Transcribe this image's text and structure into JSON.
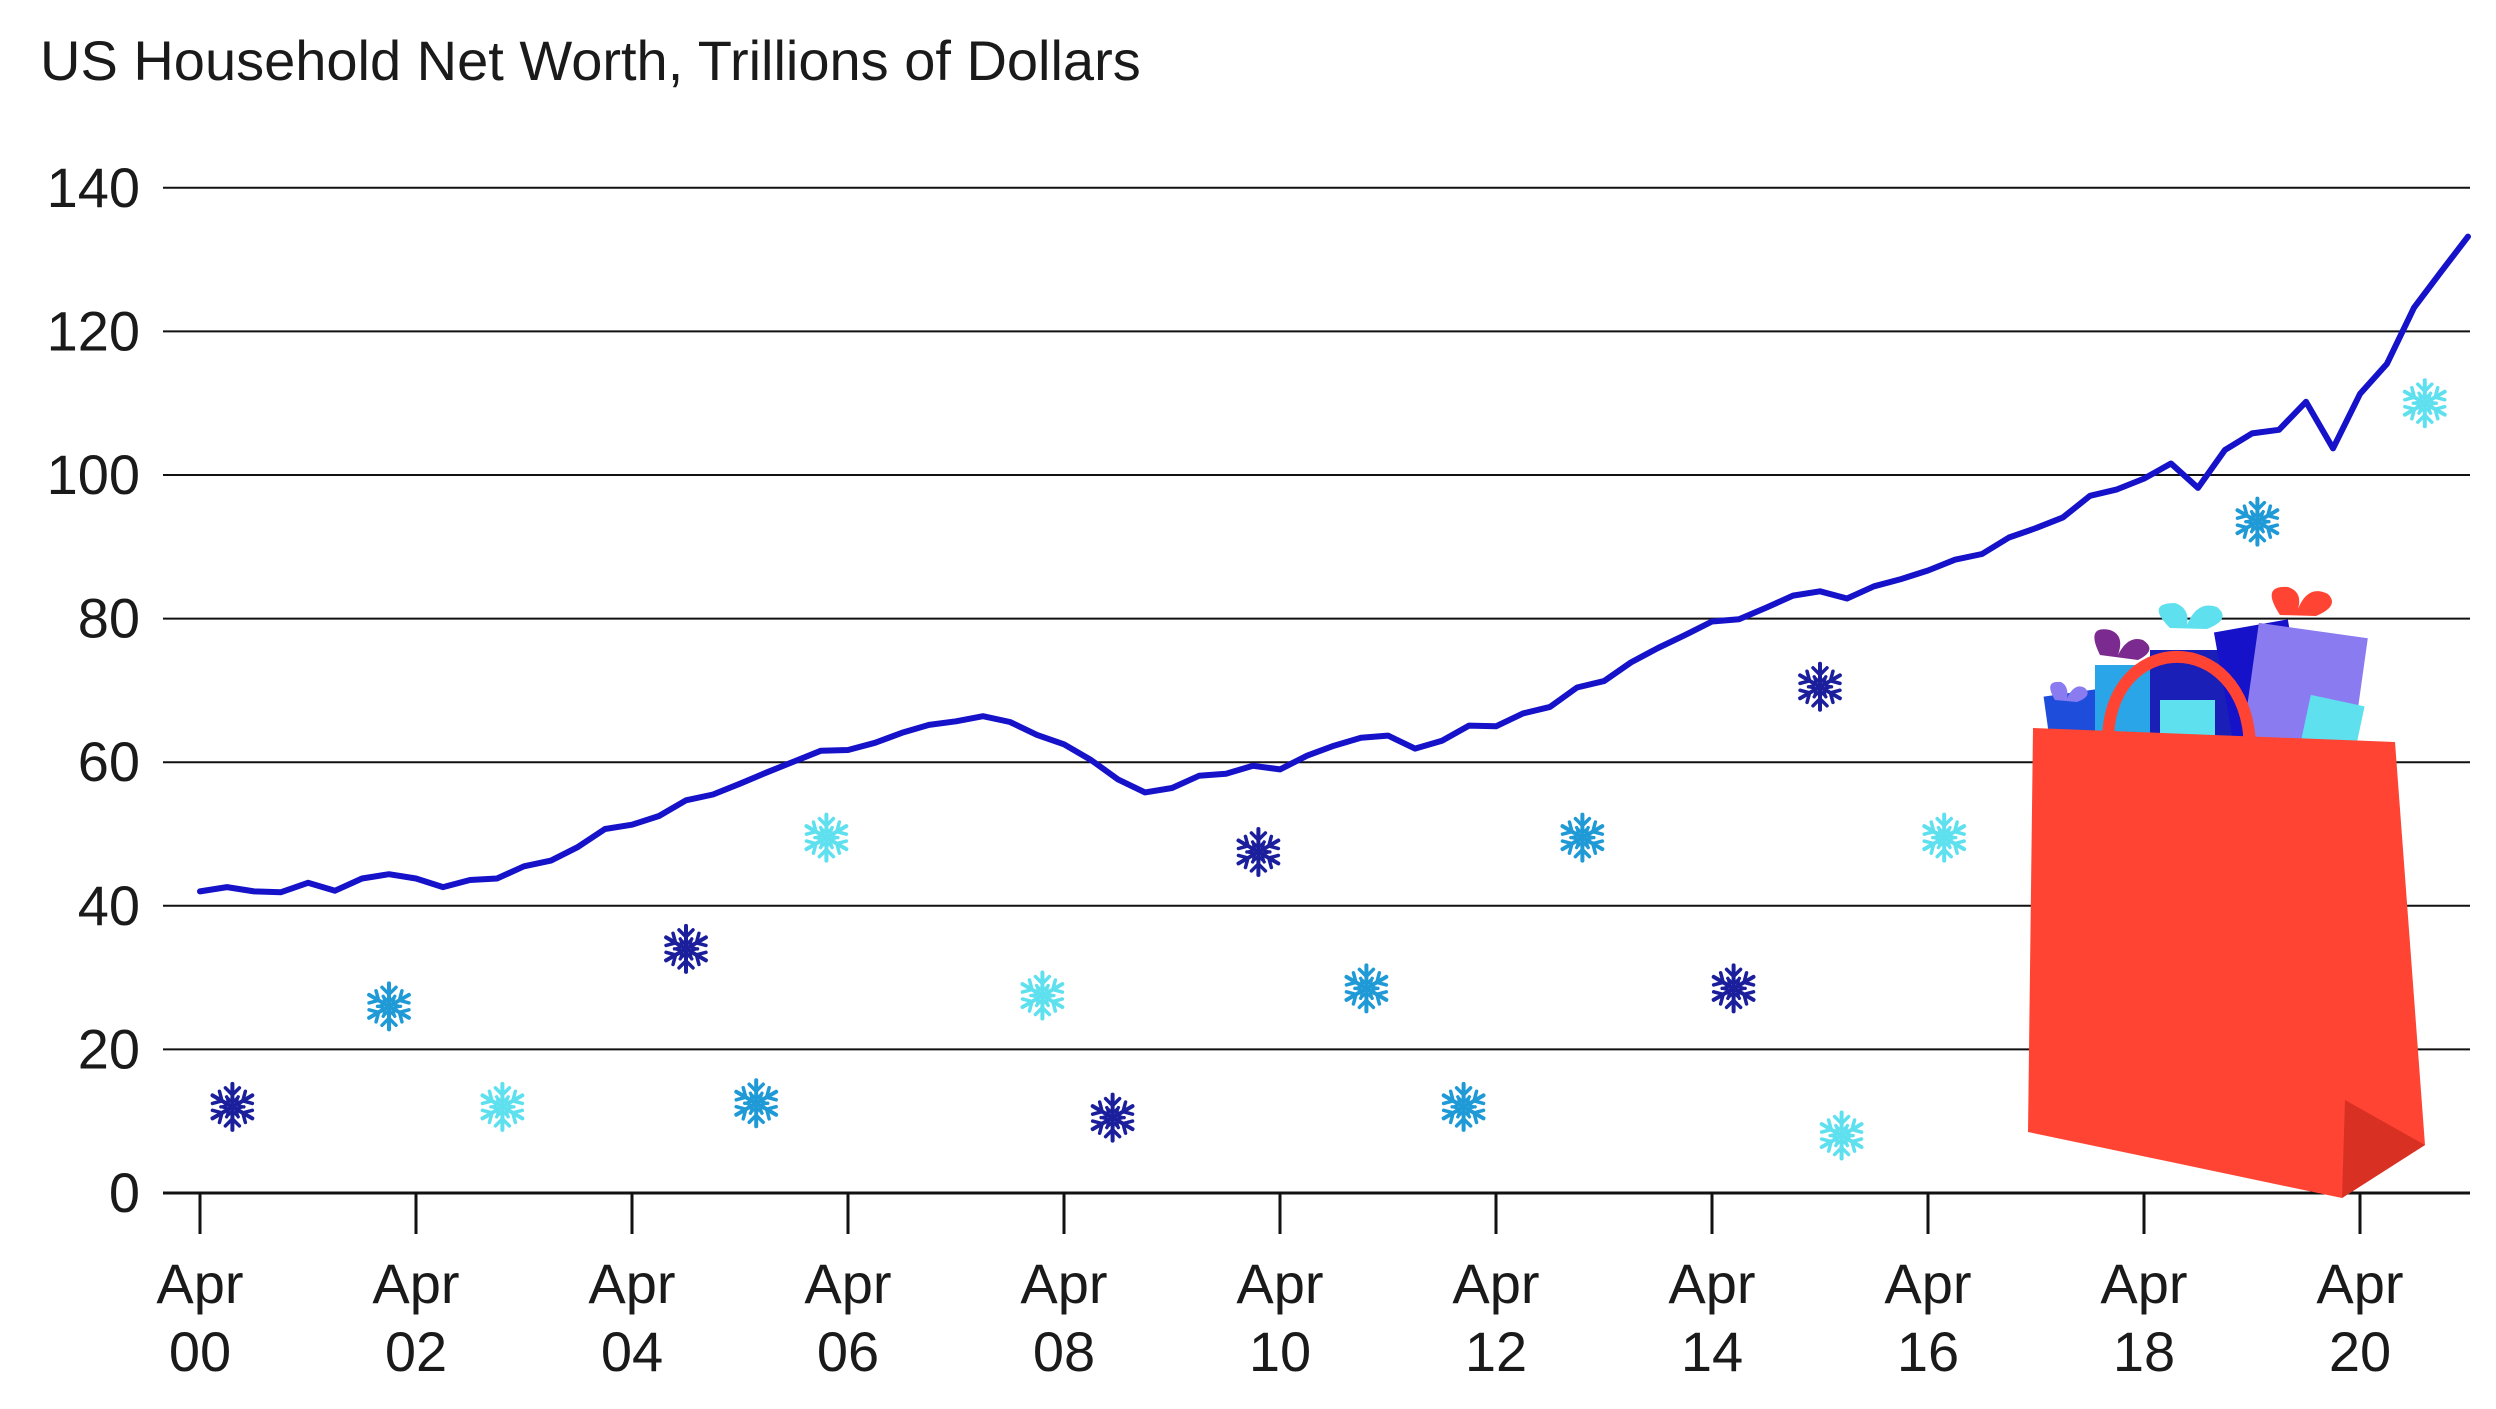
{
  "chart_data": {
    "type": "line",
    "title": "US Household Net Worth, Trillions of Dollars",
    "xlabel": "",
    "ylabel": "",
    "ylim": [
      0,
      140
    ],
    "yticks": [
      "0",
      "20",
      "40",
      "60",
      "80",
      "100",
      "120",
      "140"
    ],
    "xticks": [
      {
        "line1": "Apr",
        "line2": "00",
        "year": 2000.25
      },
      {
        "line1": "Apr",
        "line2": "02",
        "year": 2002.25
      },
      {
        "line1": "Apr",
        "line2": "04",
        "year": 2004.25
      },
      {
        "line1": "Apr",
        "line2": "06",
        "year": 2006.25
      },
      {
        "line1": "Apr",
        "line2": "08",
        "year": 2008.25
      },
      {
        "line1": "Apr",
        "line2": "10",
        "year": 2010.25
      },
      {
        "line1": "Apr",
        "line2": "12",
        "year": 2012.25
      },
      {
        "line1": "Apr",
        "line2": "14",
        "year": 2014.25
      },
      {
        "line1": "Apr",
        "line2": "16",
        "year": 2016.25
      },
      {
        "line1": "Apr",
        "line2": "18",
        "year": 2018.25
      },
      {
        "line1": "Apr",
        "line2": "20",
        "year": 2020.25
      }
    ],
    "grid": true,
    "legend": "none",
    "series": [
      {
        "x": [
          2000.25,
          2000.5,
          2000.75,
          2001.0,
          2001.25,
          2001.5,
          2001.75,
          2002.0,
          2002.25,
          2002.5,
          2002.75,
          2003.0,
          2003.25,
          2003.5,
          2003.75,
          2004.0,
          2004.25,
          2004.5,
          2004.75,
          2005.0,
          2005.25,
          2005.5,
          2005.75,
          2006.0,
          2006.25,
          2006.5,
          2006.75,
          2007.0,
          2007.25,
          2007.5,
          2007.75,
          2008.0,
          2008.25,
          2008.5,
          2008.75,
          2009.0,
          2009.25,
          2009.5,
          2009.75,
          2010.0,
          2010.25,
          2010.5,
          2010.75,
          2011.0,
          2011.25,
          2011.5,
          2011.75,
          2012.0,
          2012.25,
          2012.5,
          2012.75,
          2013.0,
          2013.25,
          2013.5,
          2013.75,
          2014.0,
          2014.25,
          2014.5,
          2014.75,
          2015.0,
          2015.25,
          2015.5,
          2015.75,
          2016.0,
          2016.25,
          2016.5,
          2016.75,
          2017.0,
          2017.25,
          2017.5,
          2017.75,
          2018.0,
          2018.25,
          2018.5,
          2018.75,
          2019.0,
          2019.25,
          2019.5,
          2019.75,
          2020.0,
          2020.25,
          2020.5,
          2020.75,
          2021.0,
          2021.25
        ],
        "values": [
          42,
          42.6,
          42,
          41.9,
          43.2,
          42.1,
          43.8,
          44.4,
          43.8,
          42.6,
          43.6,
          43.8,
          45.5,
          46.3,
          48.2,
          50.7,
          51.3,
          52.5,
          54.7,
          55.5,
          57,
          58.6,
          60.1,
          61.6,
          61.7,
          62.7,
          64.1,
          65.2,
          65.7,
          66.4,
          65.6,
          63.8,
          62.5,
          60.3,
          57.6,
          55.8,
          56.4,
          58.1,
          58.4,
          59.5,
          59,
          60.9,
          62.3,
          63.4,
          63.7,
          61.9,
          63,
          65.1,
          65,
          66.8,
          67.7,
          70.4,
          71.3,
          73.9,
          75.9,
          77.7,
          79.6,
          79.9,
          81.5,
          83.2,
          83.8,
          82.8,
          84.5,
          85.5,
          86.7,
          88.2,
          89,
          91.3,
          92.6,
          94.1,
          97.1,
          98,
          99.5,
          101.6,
          98.2,
          103.5,
          105.8,
          106.3,
          110.2,
          103.7,
          111.3,
          115.5,
          123.3,
          128.3,
          133.2
        ]
      }
    ],
    "colors": {
      "line": "#1512c9",
      "gridline": "#111111",
      "bag": "#ff4433",
      "bag_shadow": "#d93024",
      "snow_dark": "#1b1f9c",
      "snow_mid": "#1f9ad6",
      "snow_light": "#5ee0ef"
    },
    "decorations": [
      {
        "kind": "snowflake",
        "year": 2000.55,
        "value": 12,
        "tone": "dark"
      },
      {
        "kind": "snowflake",
        "year": 2002.0,
        "value": 26,
        "tone": "mid"
      },
      {
        "kind": "snowflake",
        "year": 2003.05,
        "value": 12,
        "tone": "light"
      },
      {
        "kind": "snowflake",
        "year": 2004.75,
        "value": 34,
        "tone": "dark"
      },
      {
        "kind": "snowflake",
        "year": 2005.4,
        "value": 12.5,
        "tone": "mid"
      },
      {
        "kind": "snowflake",
        "year": 2006.05,
        "value": 49.5,
        "tone": "light"
      },
      {
        "kind": "snowflake",
        "year": 2008.05,
        "value": 27.5,
        "tone": "light"
      },
      {
        "kind": "snowflake",
        "year": 2008.7,
        "value": 10.5,
        "tone": "dark"
      },
      {
        "kind": "snowflake",
        "year": 2010.05,
        "value": 47.5,
        "tone": "dark"
      },
      {
        "kind": "snowflake",
        "year": 2011.05,
        "value": 28.5,
        "tone": "mid"
      },
      {
        "kind": "snowflake",
        "year": 2011.95,
        "value": 12,
        "tone": "mid"
      },
      {
        "kind": "snowflake",
        "year": 2013.05,
        "value": 49.5,
        "tone": "mid"
      },
      {
        "kind": "snowflake",
        "year": 2014.45,
        "value": 28.5,
        "tone": "dark"
      },
      {
        "kind": "snowflake",
        "year": 2015.25,
        "value": 70.5,
        "tone": "dark"
      },
      {
        "kind": "snowflake",
        "year": 2015.45,
        "value": 8,
        "tone": "light"
      },
      {
        "kind": "snowflake",
        "year": 2016.4,
        "value": 49.5,
        "tone": "light"
      },
      {
        "kind": "snowflake",
        "year": 2019.3,
        "value": 93.5,
        "tone": "mid"
      },
      {
        "kind": "snowflake",
        "year": 2020.85,
        "value": 110,
        "tone": "light"
      },
      {
        "kind": "shopping-bag",
        "year": 2019.0,
        "value": 60,
        "tone": "bag"
      }
    ]
  }
}
